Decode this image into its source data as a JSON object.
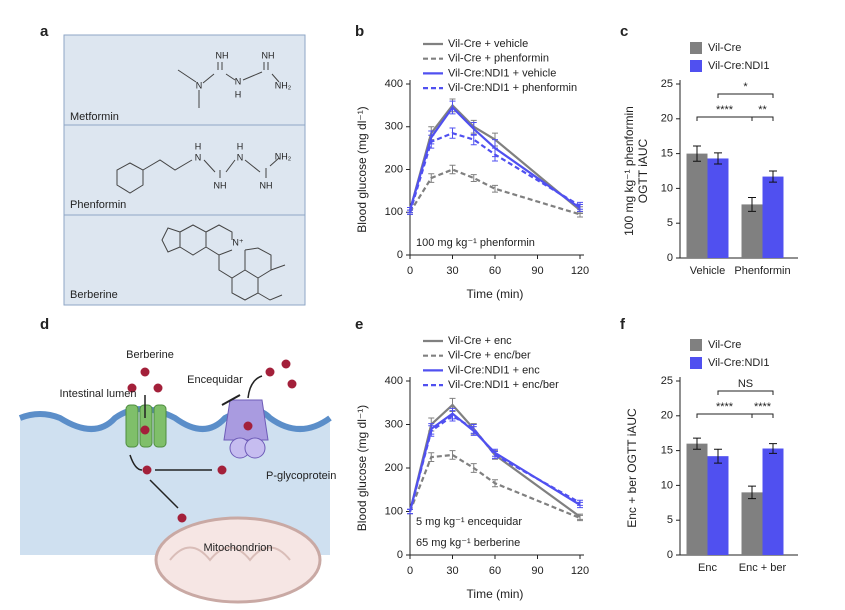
{
  "panel_labels": [
    "a",
    "b",
    "c",
    "d",
    "e",
    "f"
  ],
  "structures": [
    {
      "name": "Metformin",
      "atoms": [
        "NH",
        "NH",
        "N",
        "N",
        "H",
        "NH₂"
      ]
    },
    {
      "name": "Phenformin",
      "atoms": [
        "H",
        "N",
        "H",
        "N",
        "NH",
        "NH",
        "NH₂"
      ]
    },
    {
      "name": "Berberine",
      "atoms": [
        "N⁺"
      ]
    }
  ],
  "diagram": {
    "labels": [
      "Berberine",
      "Intestinal lumen",
      "Encequidar",
      "P-glycoprotein",
      "Mitochondrion"
    ]
  },
  "chart_data": [
    {
      "type": "line",
      "xlabel": "Time (min)",
      "ylabel": "Blood glucose (mg dl⁻¹)",
      "annotations": [
        "100 mg kg⁻¹ phenformin"
      ],
      "x": [
        0,
        15,
        30,
        45,
        60,
        120
      ],
      "xlim": [
        0,
        120
      ],
      "xticks": [
        0,
        30,
        60,
        90,
        120
      ],
      "ylim": [
        0,
        400
      ],
      "yticks": [
        0,
        100,
        200,
        300,
        400
      ],
      "legend": "top",
      "series": [
        {
          "name": "Vil-Cre + vehicle",
          "color": "#808080",
          "line_style": "solid",
          "values": [
            105,
            285,
            350,
            300,
            270,
            105
          ],
          "errors": [
            6,
            15,
            15,
            15,
            15,
            8
          ]
        },
        {
          "name": "Vil-Cre + phenformin",
          "color": "#808080",
          "line_style": "dashed",
          "values": [
            100,
            180,
            200,
            180,
            155,
            95
          ],
          "errors": [
            5,
            10,
            10,
            8,
            8,
            6
          ]
        },
        {
          "name": "Vil-Cre:NDI1 + vehicle",
          "color": "#5050f0",
          "line_style": "solid",
          "values": [
            105,
            275,
            345,
            295,
            250,
            110
          ],
          "errors": [
            6,
            15,
            15,
            15,
            20,
            8
          ]
        },
        {
          "name": "Vil-Cre:NDI1 + phenformin",
          "color": "#5050f0",
          "line_style": "dashed",
          "values": [
            100,
            265,
            285,
            270,
            235,
            115
          ],
          "errors": [
            5,
            15,
            12,
            12,
            15,
            8
          ]
        }
      ]
    },
    {
      "type": "bar",
      "ylabel": [
        "100 mg kg⁻¹ phenformin",
        "OGTT iAUC"
      ],
      "categories": [
        "Vehicle",
        "Phenformin"
      ],
      "ylim": [
        0,
        25
      ],
      "yticks": [
        0,
        5,
        10,
        15,
        20,
        25
      ],
      "legend": "top-left",
      "significance": [
        "****",
        "**",
        "*"
      ],
      "series": [
        {
          "name": "Vil-Cre",
          "color": "#808080",
          "values": [
            15,
            7.7
          ],
          "errors": [
            1.1,
            1
          ]
        },
        {
          "name": "Vil-Cre:NDI1",
          "color": "#5050f0",
          "values": [
            14.3,
            11.7
          ],
          "errors": [
            0.8,
            0.8
          ]
        }
      ]
    },
    {
      "type": "line",
      "xlabel": "Time (min)",
      "ylabel": "Blood glucose (mg dl⁻¹)",
      "annotations": [
        "5 mg kg⁻¹ encequidar",
        "65 mg kg⁻¹ berberine"
      ],
      "x": [
        0,
        15,
        30,
        45,
        60,
        120
      ],
      "xlim": [
        0,
        120
      ],
      "xticks": [
        0,
        30,
        60,
        90,
        120
      ],
      "ylim": [
        0,
        400
      ],
      "yticks": [
        0,
        100,
        200,
        300,
        400
      ],
      "legend": "top",
      "series": [
        {
          "name": "Vil-Cre + enc",
          "color": "#808080",
          "line_style": "solid",
          "values": [
            100,
            300,
            345,
            290,
            230,
            88
          ],
          "errors": [
            5,
            15,
            15,
            12,
            10,
            6
          ]
        },
        {
          "name": "Vil-Cre + enc/ber",
          "color": "#808080",
          "line_style": "dashed",
          "values": [
            100,
            225,
            230,
            200,
            165,
            85
          ],
          "errors": [
            5,
            10,
            10,
            10,
            8,
            6
          ]
        },
        {
          "name": "Vil-Cre:NDI1 + enc",
          "color": "#5050f0",
          "line_style": "solid",
          "values": [
            100,
            290,
            325,
            285,
            235,
            115
          ],
          "errors": [
            5,
            12,
            12,
            10,
            8,
            6
          ]
        },
        {
          "name": "Vil-Cre:NDI1 + enc/ber",
          "color": "#5050f0",
          "line_style": "dashed",
          "values": [
            100,
            285,
            320,
            290,
            230,
            120
          ],
          "errors": [
            5,
            12,
            12,
            10,
            8,
            6
          ]
        }
      ]
    },
    {
      "type": "bar",
      "ylabel": [
        "Enc + ber OGTT iAUC"
      ],
      "categories": [
        "Enc",
        "Enc + ber"
      ],
      "ylim": [
        0,
        25
      ],
      "yticks": [
        0,
        5,
        10,
        15,
        20,
        25
      ],
      "legend": "top-left",
      "significance": [
        "NS",
        "****",
        "****"
      ],
      "series": [
        {
          "name": "Vil-Cre",
          "color": "#808080",
          "values": [
            16,
            9
          ],
          "errors": [
            0.8,
            0.9
          ]
        },
        {
          "name": "Vil-Cre:NDI1",
          "color": "#5050f0",
          "values": [
            14.2,
            15.3
          ],
          "errors": [
            1,
            0.7
          ]
        }
      ]
    }
  ]
}
